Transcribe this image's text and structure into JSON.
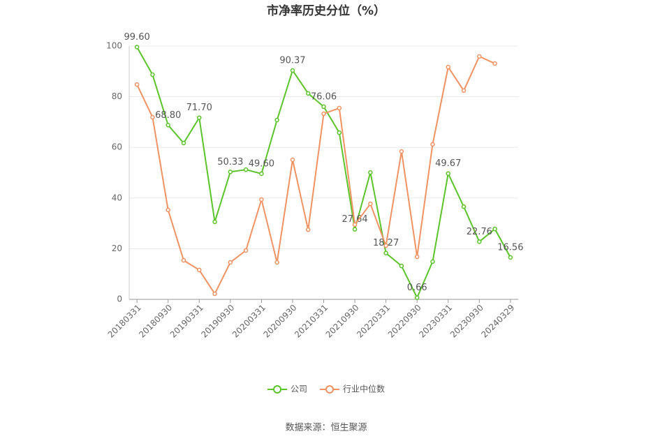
{
  "chart_data": {
    "type": "line",
    "title": "市净率历史分位（%）",
    "categories": [
      "20180331",
      null,
      "20180930",
      null,
      "20190331",
      null,
      "20190930",
      null,
      "20200331",
      null,
      "20200930",
      null,
      "20210331",
      null,
      "20210930",
      null,
      "20220331",
      null,
      "20220930",
      null,
      "20230331",
      null,
      "20230930",
      null,
      "20240329"
    ],
    "series": [
      {
        "name": "公司",
        "color": "#5bc42a",
        "values": [
          99.6,
          88.7,
          68.8,
          61.7,
          71.7,
          30.6,
          50.33,
          51.2,
          49.6,
          70.8,
          90.37,
          81.3,
          76.06,
          65.8,
          27.64,
          50.1,
          18.27,
          13.2,
          0.66,
          14.9,
          49.67,
          36.6,
          22.76,
          27.8,
          16.56
        ],
        "value_labels": [
          "99.60",
          null,
          "68.80",
          null,
          "71.70",
          null,
          "50.33",
          null,
          "49.60",
          null,
          "90.37",
          null,
          "76.06",
          null,
          "27.64",
          null,
          "18.27",
          null,
          "0.66",
          null,
          "49.67",
          null,
          "22.76",
          null,
          "16.56"
        ]
      },
      {
        "name": "行业中位数",
        "color": "#f19262",
        "values": [
          84.8,
          71.9,
          35.3,
          15.4,
          11.6,
          2.2,
          14.6,
          19.3,
          39.4,
          14.6,
          55.1,
          27.5,
          73.3,
          75.5,
          29.5,
          37.7,
          21.2,
          58.4,
          16.8,
          61.2,
          91.7,
          82.4,
          95.9,
          93.1,
          null
        ]
      }
    ],
    "ylim": [
      0,
      100
    ],
    "yticks": [
      0,
      20,
      40,
      60,
      80,
      100
    ],
    "grid": true,
    "legend": "bottom",
    "source": "数据来源：恒生聚源"
  }
}
